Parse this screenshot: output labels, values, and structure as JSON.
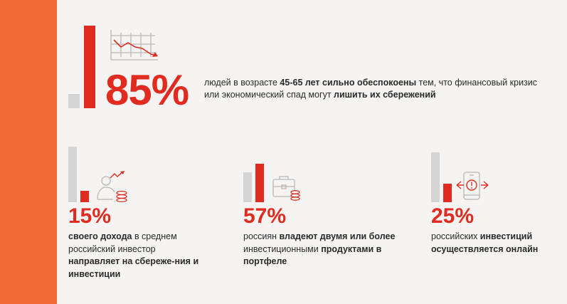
{
  "hero": {
    "percent": "85%",
    "text": {
      "p1": "людей в возрасте ",
      "b1": "45-65 лет сильно обеспокоены",
      "p2": " тем, что финансовый кризис или экономический спад могут ",
      "b2": "лишить их сбережений"
    },
    "icon": "declining-chart-icon"
  },
  "stats": [
    {
      "percent": "15%",
      "b1": "своего дохода",
      "p1": " в среднем российский инвестор ",
      "b2": "направляет на сбереже-ния и инвестиции",
      "icon": "person-with-coins-icon"
    },
    {
      "percent": "57%",
      "p1": "россиян ",
      "b1": "владеют двумя или более",
      "p2": " инвестиционными ",
      "b2": "продуктами в портфеле",
      "icon": "briefcase-coins-icon"
    },
    {
      "percent": "25%",
      "p1": "российских ",
      "b1": "инвестиций осуществляется онлайн",
      "icon": "phone-alert-icon"
    }
  ],
  "colors": {
    "accent_orange": "#f06b35",
    "accent_red": "#e02b20",
    "bar_gray": "#d4d4d4",
    "background": "#f5f4f2"
  }
}
